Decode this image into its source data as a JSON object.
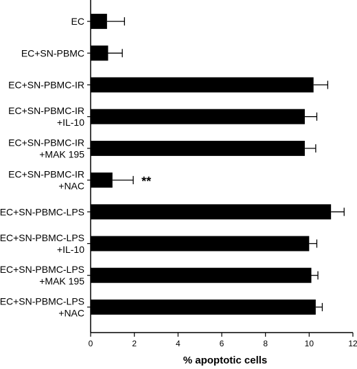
{
  "chart_data": {
    "type": "bar",
    "orientation": "horizontal",
    "xlabel": "% apoptotic cells",
    "ylabel": "",
    "xlim": [
      0,
      12
    ],
    "xticks": [
      0,
      2,
      4,
      6,
      8,
      10,
      12
    ],
    "grid": false,
    "categories": [
      [
        "EC"
      ],
      [
        "EC+SN-PBMC"
      ],
      [
        "EC+SN-PBMC-IR"
      ],
      [
        "EC+SN-PBMC-IR",
        "+IL-10"
      ],
      [
        "EC+SN-PBMC-IR",
        "+MAK 195"
      ],
      [
        "EC+SN-PBMC-IR",
        "+NAC"
      ],
      [
        "EC+SN-PBMC-LPS"
      ],
      [
        "EC+SN-PBMC-LPS",
        "+IL-10"
      ],
      [
        "EC+SN-PBMC-LPS",
        "+MAK 195"
      ],
      [
        "EC+SN-PBMC-LPS",
        "+NAC"
      ]
    ],
    "values": [
      0.75,
      0.8,
      10.2,
      9.8,
      9.8,
      1.0,
      11.0,
      10.0,
      10.1,
      10.3
    ],
    "errors": [
      0.8,
      0.65,
      0.65,
      0.55,
      0.5,
      0.95,
      0.6,
      0.35,
      0.3,
      0.3
    ],
    "annotations": [
      {
        "category_index": 5,
        "text": "**"
      }
    ],
    "bar_color": "#000000"
  }
}
